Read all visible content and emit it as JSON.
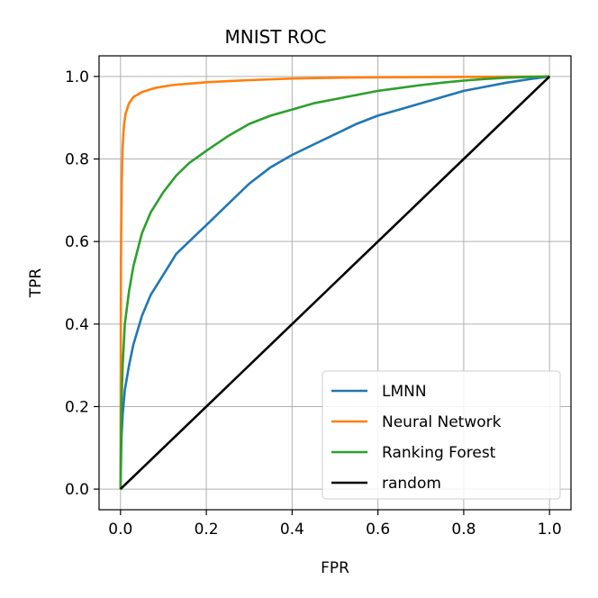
{
  "chart_data": {
    "type": "line",
    "title": "MNIST ROC",
    "xlabel": "FPR",
    "ylabel": "TPR",
    "xlim": [
      -0.05,
      1.05
    ],
    "ylim": [
      -0.05,
      1.05
    ],
    "grid": true,
    "legend_position": "lower-right",
    "x_ticks": [
      0.0,
      0.2,
      0.4,
      0.6,
      0.8,
      1.0
    ],
    "x_tick_labels": [
      "0.0",
      "0.2",
      "0.4",
      "0.6",
      "0.8",
      "1.0"
    ],
    "y_ticks": [
      0.0,
      0.2,
      0.4,
      0.6,
      0.8,
      1.0
    ],
    "y_tick_labels": [
      "0.0",
      "0.2",
      "0.4",
      "0.6",
      "0.8",
      "1.0"
    ],
    "series": [
      {
        "name": "LMNN",
        "color": "#1f77b4",
        "x": [
          0,
          0.002,
          0.005,
          0.01,
          0.02,
          0.03,
          0.05,
          0.07,
          0.1,
          0.13,
          0.16,
          0.2,
          0.25,
          0.3,
          0.35,
          0.4,
          0.45,
          0.5,
          0.55,
          0.6,
          0.65,
          0.7,
          0.75,
          0.8,
          0.85,
          0.9,
          0.95,
          1.0
        ],
        "y": [
          0,
          0.12,
          0.18,
          0.24,
          0.3,
          0.35,
          0.42,
          0.47,
          0.52,
          0.57,
          0.6,
          0.64,
          0.69,
          0.74,
          0.78,
          0.81,
          0.835,
          0.86,
          0.885,
          0.905,
          0.92,
          0.935,
          0.95,
          0.965,
          0.975,
          0.985,
          0.993,
          1.0
        ]
      },
      {
        "name": "Neural Network",
        "color": "#ff7f0e",
        "x": [
          0,
          0.001,
          0.003,
          0.005,
          0.008,
          0.012,
          0.02,
          0.03,
          0.05,
          0.08,
          0.12,
          0.2,
          0.3,
          0.4,
          0.5,
          0.6,
          0.8,
          1.0
        ],
        "y": [
          0,
          0.55,
          0.75,
          0.83,
          0.88,
          0.91,
          0.935,
          0.95,
          0.962,
          0.972,
          0.979,
          0.986,
          0.991,
          0.995,
          0.997,
          0.998,
          0.999,
          1.0
        ]
      },
      {
        "name": "Ranking Forest",
        "color": "#2ca02c",
        "x": [
          0,
          0.002,
          0.005,
          0.01,
          0.02,
          0.03,
          0.05,
          0.07,
          0.1,
          0.13,
          0.16,
          0.2,
          0.25,
          0.3,
          0.35,
          0.4,
          0.45,
          0.5,
          0.55,
          0.6,
          0.65,
          0.7,
          0.75,
          0.8,
          0.85,
          0.9,
          0.95,
          1.0
        ],
        "y": [
          0,
          0.2,
          0.3,
          0.4,
          0.48,
          0.54,
          0.62,
          0.67,
          0.72,
          0.76,
          0.79,
          0.82,
          0.855,
          0.885,
          0.905,
          0.92,
          0.935,
          0.945,
          0.955,
          0.965,
          0.972,
          0.979,
          0.985,
          0.99,
          0.994,
          0.997,
          0.999,
          1.0
        ]
      },
      {
        "name": "random",
        "color": "#000000",
        "x": [
          0,
          1
        ],
        "y": [
          0,
          1
        ]
      }
    ]
  }
}
